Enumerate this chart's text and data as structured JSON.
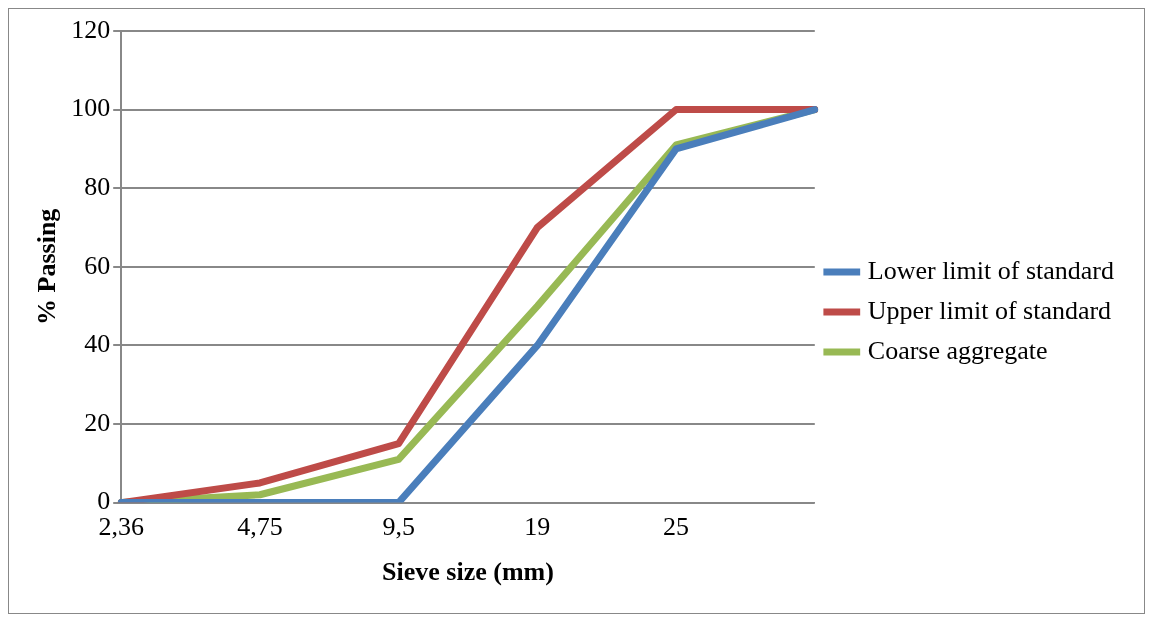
{
  "chart_data": {
    "type": "line",
    "xlabel": "Sieve size (mm)",
    "ylabel": "% Passing",
    "categories": [
      "2,36",
      "4,75",
      "9,5",
      "19",
      "25",
      null
    ],
    "series": [
      {
        "name": "Lower limit of standard",
        "color": "#4a7ebb",
        "values": [
          0,
          0,
          0,
          40,
          90,
          100
        ]
      },
      {
        "name": "Upper limit of standard",
        "color": "#be4b48",
        "values": [
          0,
          5,
          15,
          70,
          100,
          100
        ]
      },
      {
        "name": "Coarse aggregate",
        "color": "#98b954",
        "values": [
          0,
          2,
          11,
          50,
          91,
          100
        ]
      }
    ],
    "ylim": [
      0,
      120
    ],
    "yticks": [
      0,
      20,
      40,
      60,
      80,
      100,
      120
    ],
    "grid": "y",
    "legend": "right",
    "marker": "none",
    "line_style": "solid"
  }
}
